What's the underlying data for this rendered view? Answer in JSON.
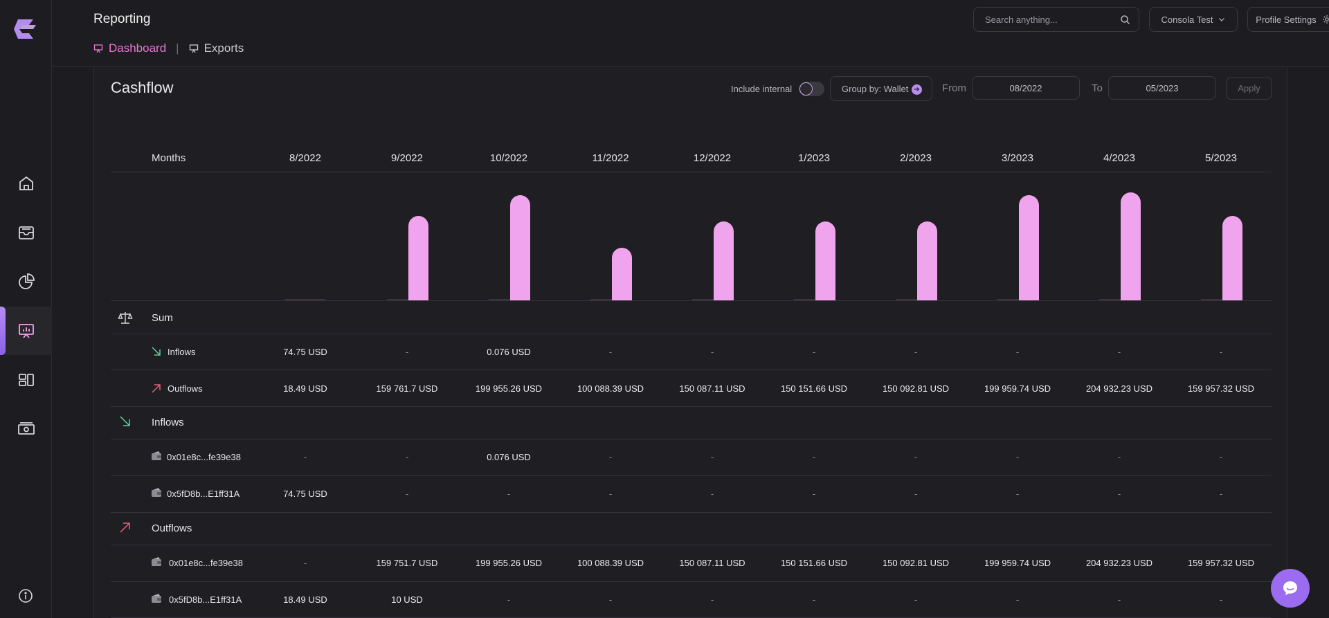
{
  "header": {
    "title": "Reporting",
    "tabs": [
      {
        "label": "Dashboard",
        "active": true
      },
      {
        "label": "Exports",
        "active": false
      }
    ],
    "search_placeholder": "Search anything...",
    "account_label": "Consola Test",
    "profile_label": "Profile Settings"
  },
  "sidebar": {
    "items": [
      {
        "name": "home",
        "icon": "home-icon"
      },
      {
        "name": "wallets",
        "icon": "inbox-icon"
      },
      {
        "name": "analytics",
        "icon": "pie-chart-icon"
      },
      {
        "name": "reporting",
        "icon": "presentation-chart-icon",
        "active": true
      },
      {
        "name": "widgets",
        "icon": "layout-icon"
      },
      {
        "name": "money",
        "icon": "banknote-icon"
      }
    ]
  },
  "cashflow": {
    "title": "Cashflow",
    "include_internal_label": "Include internal",
    "group_by_label": "Group by: Wallet",
    "from_label": "From",
    "from_value": "08/2022",
    "to_label": "To",
    "to_value": "05/2023",
    "apply_label": "Apply",
    "months_label": "Months",
    "months": [
      "8/2022",
      "9/2022",
      "10/2022",
      "11/2022",
      "12/2022",
      "1/2023",
      "2/2023",
      "3/2023",
      "4/2023",
      "5/2023"
    ],
    "sum_label": "Sum",
    "inflows_label": "Inflows",
    "outflows_label": "Outflows",
    "sum_inflows": [
      "74.75 USD",
      "-",
      "0.076 USD",
      "-",
      "-",
      "-",
      "-",
      "-",
      "-",
      "-"
    ],
    "sum_outflows": [
      "18.49 USD",
      "159 761.7 USD",
      "199 955.26 USD",
      "100 088.39 USD",
      "150 087.11 USD",
      "150 151.66 USD",
      "150 092.81 USD",
      "199 959.74 USD",
      "204 932.23 USD",
      "159 957.32 USD"
    ],
    "inflow_wallets": [
      {
        "label": "0x01e8c...fe39e38",
        "values": [
          "-",
          "-",
          "0.076 USD",
          "-",
          "-",
          "-",
          "-",
          "-",
          "-",
          "-"
        ]
      },
      {
        "label": "0x5fD8b...E1ff31A",
        "values": [
          "74.75 USD",
          "-",
          "-",
          "-",
          "-",
          "-",
          "-",
          "-",
          "-",
          "-"
        ]
      }
    ],
    "outflow_wallets": [
      {
        "label": "0x01e8c...fe39e38",
        "values": [
          "-",
          "159 751.7 USD",
          "199 955.26 USD",
          "100 088.39 USD",
          "150 087.11 USD",
          "150 151.66 USD",
          "150 092.81 USD",
          "199 959.74 USD",
          "204 932.23 USD",
          "159 957.32 USD"
        ]
      },
      {
        "label": "0x5fD8b...E1ff31A",
        "values": [
          "18.49 USD",
          "10 USD",
          "-",
          "-",
          "-",
          "-",
          "-",
          "-",
          "-",
          "-"
        ]
      }
    ]
  },
  "chart_data": {
    "type": "bar",
    "categories": [
      "8/2022",
      "9/2022",
      "10/2022",
      "11/2022",
      "12/2022",
      "1/2023",
      "2/2023",
      "3/2023",
      "4/2023",
      "5/2023"
    ],
    "series": [
      {
        "values": [
          18.49,
          159761.7,
          199955.26,
          100088.39,
          150087.11,
          150151.66,
          150092.81,
          199959.74,
          204932.23,
          159957.32
        ]
      }
    ],
    "ylim": [
      0,
      204932.23
    ],
    "colors": {
      "bar": "#f0a4ee",
      "base": "#3b3344"
    }
  },
  "colors": {
    "accent": "#e879d4",
    "purple": "#9b6cf0",
    "inflow_arrow": "#5fd39a",
    "outflow_arrow": "#e8617a"
  }
}
